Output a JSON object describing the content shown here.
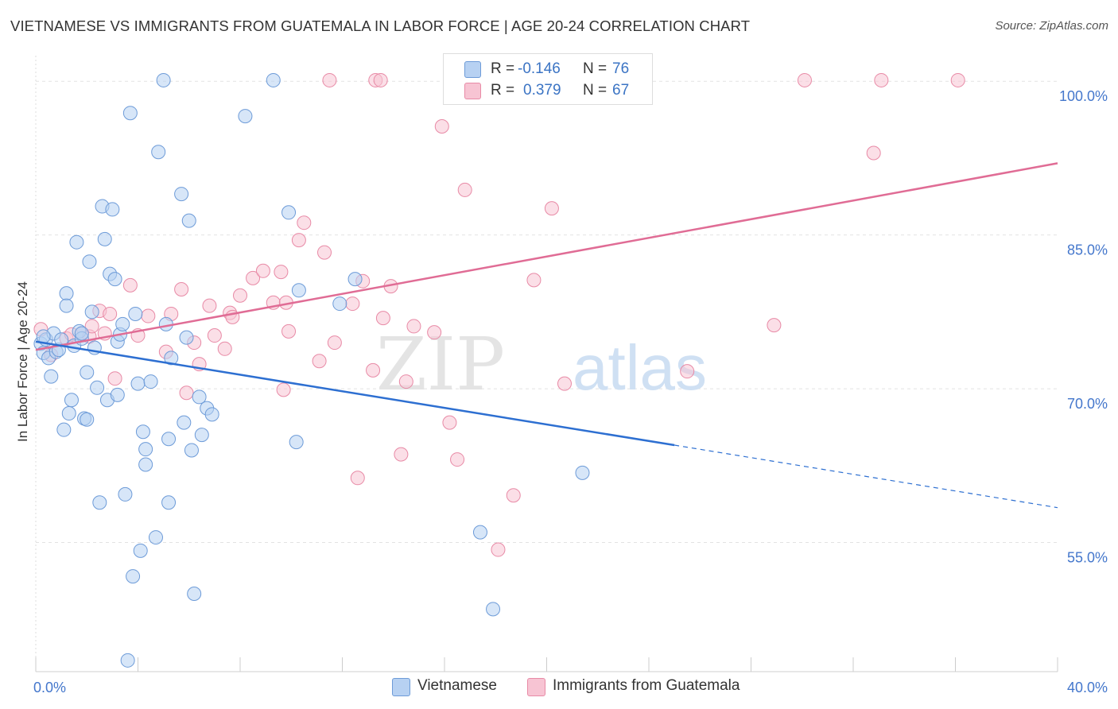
{
  "title": "VIETNAMESE VS IMMIGRANTS FROM GUATEMALA IN LABOR FORCE | AGE 20-24 CORRELATION CHART",
  "source": "Source: ZipAtlas.com",
  "watermark": {
    "zip": "ZIP",
    "atlas": "atlas"
  },
  "colors": {
    "blue_fill": "#b7d1f2",
    "blue_stroke": "#6d9bd8",
    "blue_line": "#2d6fd1",
    "pink_fill": "#f7c4d3",
    "pink_stroke": "#e88aa6",
    "pink_line": "#e06c95",
    "tick_blue": "#4477cc",
    "grid": "#e2e2e2"
  },
  "legend_stats": [
    {
      "r_label": "R =",
      "r_value": "-0.146",
      "n_label": "N =",
      "n_value": "76"
    },
    {
      "r_label": "R =",
      "r_value": "0.379",
      "n_label": "N =",
      "n_value": "67"
    }
  ],
  "legend": {
    "series1": "Vietnamese",
    "series2": "Immigrants from Guatemala"
  },
  "chart_data": {
    "type": "scatter",
    "xlabel": "",
    "ylabel": "In Labor Force | Age 20-24",
    "x_tick_labels": [
      "0.0%",
      "40.0%"
    ],
    "y_tick_labels": [
      "100.0%",
      "85.0%",
      "70.0%",
      "55.0%"
    ],
    "x_ticks": [
      0,
      40
    ],
    "y_ticks": [
      100,
      85,
      70,
      55
    ],
    "xlim": [
      0,
      40
    ],
    "ylim": [
      42.4,
      102.5
    ],
    "grid": true,
    "legend_position": "top-center",
    "series": [
      {
        "name": "Vietnamese",
        "trend": {
          "x": [
            0,
            25
          ],
          "y": [
            74.6,
            64.5
          ],
          "dashed_x": [
            25,
            40
          ],
          "dashed_y": [
            64.5,
            58.4
          ]
        },
        "points": [
          [
            0.2,
            74.4
          ],
          [
            0.3,
            73.5
          ],
          [
            0.4,
            74.8
          ],
          [
            0.5,
            73.0
          ],
          [
            0.6,
            71.2
          ],
          [
            0.7,
            75.4
          ],
          [
            0.8,
            73.6
          ],
          [
            0.9,
            73.8
          ],
          [
            1.0,
            74.8
          ],
          [
            1.1,
            66.0
          ],
          [
            1.2,
            79.3
          ],
          [
            1.2,
            78.1
          ],
          [
            1.3,
            67.6
          ],
          [
            1.4,
            68.9
          ],
          [
            1.5,
            74.2
          ],
          [
            1.6,
            84.3
          ],
          [
            1.7,
            75.6
          ],
          [
            1.8,
            74.9
          ],
          [
            1.9,
            67.1
          ],
          [
            2.0,
            67.0
          ],
          [
            2.0,
            71.6
          ],
          [
            2.1,
            82.4
          ],
          [
            2.2,
            77.5
          ],
          [
            2.3,
            74.0
          ],
          [
            2.4,
            70.1
          ],
          [
            2.5,
            58.9
          ],
          [
            2.6,
            87.8
          ],
          [
            2.7,
            84.6
          ],
          [
            2.8,
            68.9
          ],
          [
            2.9,
            81.2
          ],
          [
            3.0,
            87.5
          ],
          [
            3.1,
            80.7
          ],
          [
            3.2,
            69.4
          ],
          [
            3.2,
            74.6
          ],
          [
            3.3,
            75.3
          ],
          [
            3.4,
            76.3
          ],
          [
            3.5,
            59.7
          ],
          [
            3.6,
            43.5
          ],
          [
            3.7,
            96.9
          ],
          [
            3.8,
            51.7
          ],
          [
            3.9,
            77.3
          ],
          [
            4.0,
            70.5
          ],
          [
            4.1,
            54.2
          ],
          [
            4.2,
            65.8
          ],
          [
            4.3,
            64.1
          ],
          [
            4.3,
            62.6
          ],
          [
            4.5,
            70.7
          ],
          [
            4.7,
            55.5
          ],
          [
            4.8,
            93.1
          ],
          [
            5.0,
            100.1
          ],
          [
            5.1,
            76.3
          ],
          [
            5.2,
            65.1
          ],
          [
            5.2,
            58.9
          ],
          [
            5.3,
            73.0
          ],
          [
            5.7,
            89.0
          ],
          [
            5.8,
            66.7
          ],
          [
            5.9,
            75.0
          ],
          [
            6.0,
            86.4
          ],
          [
            6.1,
            64.0
          ],
          [
            6.2,
            50.0
          ],
          [
            6.4,
            69.2
          ],
          [
            6.5,
            65.5
          ],
          [
            6.7,
            68.1
          ],
          [
            6.9,
            67.5
          ],
          [
            8.2,
            96.6
          ],
          [
            9.3,
            100.1
          ],
          [
            9.9,
            87.2
          ],
          [
            10.2,
            64.8
          ],
          [
            10.3,
            79.6
          ],
          [
            11.9,
            78.3
          ],
          [
            12.5,
            80.7
          ],
          [
            17.4,
            56.0
          ],
          [
            17.9,
            48.5
          ],
          [
            21.4,
            61.8
          ],
          [
            0.3,
            75.1
          ],
          [
            1.8,
            75.4
          ]
        ]
      },
      {
        "name": "Immigrants from Guatemala",
        "trend": {
          "x": [
            0,
            40
          ],
          "y": [
            73.8,
            92.0
          ]
        },
        "points": [
          [
            0.2,
            75.8
          ],
          [
            0.6,
            73.3
          ],
          [
            1.2,
            74.9
          ],
          [
            1.4,
            75.3
          ],
          [
            1.8,
            75.4
          ],
          [
            2.1,
            75.1
          ],
          [
            2.2,
            76.1
          ],
          [
            2.5,
            77.6
          ],
          [
            2.7,
            75.4
          ],
          [
            2.9,
            77.3
          ],
          [
            3.1,
            71.0
          ],
          [
            3.7,
            80.1
          ],
          [
            4.0,
            75.2
          ],
          [
            4.4,
            77.1
          ],
          [
            5.1,
            73.6
          ],
          [
            5.3,
            77.3
          ],
          [
            5.7,
            79.7
          ],
          [
            5.9,
            69.6
          ],
          [
            6.2,
            74.5
          ],
          [
            6.4,
            72.4
          ],
          [
            6.8,
            78.1
          ],
          [
            7.0,
            75.2
          ],
          [
            7.6,
            77.4
          ],
          [
            7.7,
            77.0
          ],
          [
            8.0,
            79.1
          ],
          [
            8.5,
            80.8
          ],
          [
            8.9,
            81.5
          ],
          [
            9.3,
            78.4
          ],
          [
            9.6,
            81.4
          ],
          [
            9.7,
            69.9
          ],
          [
            9.8,
            78.4
          ],
          [
            10.3,
            84.5
          ],
          [
            10.5,
            86.2
          ],
          [
            11.1,
            72.7
          ],
          [
            11.3,
            83.3
          ],
          [
            11.5,
            100.1
          ],
          [
            11.7,
            74.5
          ],
          [
            12.6,
            61.3
          ],
          [
            12.8,
            80.5
          ],
          [
            13.3,
            100.1
          ],
          [
            13.5,
            100.1
          ],
          [
            13.6,
            76.9
          ],
          [
            13.9,
            80.0
          ],
          [
            14.3,
            63.6
          ],
          [
            14.5,
            70.7
          ],
          [
            14.8,
            76.1
          ],
          [
            15.6,
            75.5
          ],
          [
            15.9,
            95.6
          ],
          [
            16.2,
            66.7
          ],
          [
            16.5,
            63.1
          ],
          [
            16.8,
            89.4
          ],
          [
            18.1,
            54.3
          ],
          [
            18.6,
            100.1
          ],
          [
            18.7,
            59.6
          ],
          [
            19.5,
            80.6
          ],
          [
            20.2,
            87.6
          ],
          [
            20.7,
            70.5
          ],
          [
            25.5,
            71.7
          ],
          [
            28.9,
            76.2
          ],
          [
            30.1,
            100.1
          ],
          [
            32.8,
            93.0
          ],
          [
            33.1,
            100.1
          ],
          [
            36.1,
            100.1
          ],
          [
            13.2,
            71.8
          ],
          [
            12.4,
            78.3
          ],
          [
            9.9,
            75.6
          ],
          [
            7.4,
            73.9
          ]
        ]
      }
    ]
  }
}
